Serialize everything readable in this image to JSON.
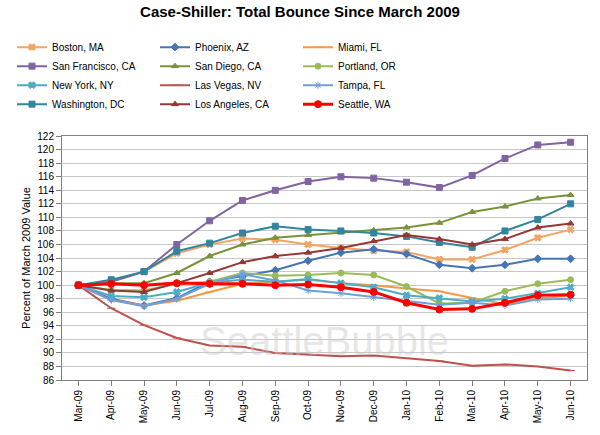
{
  "chart_data": {
    "type": "line",
    "title": "Case-Shiller: Total Bounce Since March 2009",
    "y_label": "Percent of March 2009 Value",
    "annotations": [
      "SeattleBubble"
    ],
    "categories": [
      "Mar-09",
      "Apr-09",
      "May-09",
      "Jun-09",
      "Jul-09",
      "Aug-09",
      "Sep-09",
      "Oct-09",
      "Nov-09",
      "Dec-09",
      "Jan-10",
      "Feb-10",
      "Mar-10",
      "Apr-10",
      "May-10",
      "Jun-10"
    ],
    "ylim": [
      86,
      122
    ],
    "yticks": [
      86,
      88,
      90,
      92,
      94,
      96,
      98,
      100,
      102,
      104,
      106,
      108,
      110,
      112,
      114,
      116,
      118,
      120,
      122
    ],
    "grid": true,
    "legend": "top",
    "series": [
      {
        "name": "Boston, MA",
        "color": "#f4a460",
        "marker": "x",
        "values": [
          100,
          100.5,
          102,
          104.7,
          106,
          106.9,
          106.7,
          106,
          105.5,
          105.1,
          104.9,
          103.8,
          103.8,
          105.2,
          107,
          108.2
        ]
      },
      {
        "name": "Phoenix, AZ",
        "color": "#4575b4",
        "marker": "diamond",
        "values": [
          100,
          98,
          97,
          98.1,
          100.5,
          101.3,
          102.2,
          103.6,
          104.8,
          105.3,
          104.6,
          103,
          102.5,
          103,
          103.9,
          103.9
        ]
      },
      {
        "name": "Miami, FL",
        "color": "#f79646",
        "marker": "line-ew",
        "values": [
          100,
          97.8,
          97,
          97.7,
          99,
          100.2,
          100.5,
          100.8,
          100.3,
          100,
          99.5,
          99.1,
          98.1,
          97.2,
          98,
          98.5
        ]
      },
      {
        "name": "San Francisco, CA",
        "color": "#8064a2",
        "marker": "square",
        "values": [
          100,
          100.5,
          102,
          106,
          109.5,
          112.5,
          114,
          115.3,
          116,
          115.8,
          115.2,
          114.4,
          116.2,
          118.7,
          120.7,
          121.1
        ]
      },
      {
        "name": "San Diego, CA",
        "color": "#77933c",
        "marker": "triangle-up",
        "values": [
          100,
          100.3,
          100.3,
          101.8,
          104.3,
          106,
          107,
          107.4,
          107.8,
          108.1,
          108.5,
          109.2,
          110.8,
          111.6,
          112.8,
          113.3
        ]
      },
      {
        "name": "Portland, OR",
        "color": "#9bbb59",
        "marker": "circle",
        "values": [
          100,
          99.3,
          99.2,
          100.2,
          100.5,
          101.8,
          101.4,
          101.5,
          101.8,
          101.5,
          99.8,
          97.3,
          97.4,
          99.1,
          100.2,
          100.8
        ]
      },
      {
        "name": "New York, NY",
        "color": "#4bacc6",
        "marker": "x",
        "values": [
          100,
          98.4,
          98.2,
          99,
          100.4,
          100.8,
          100.5,
          100.9,
          100.3,
          99.7,
          98.5,
          98.1,
          97.6,
          98,
          98.8,
          99.7
        ]
      },
      {
        "name": "Las Vegas, NV",
        "color": "#c0504d",
        "marker": "line-ew",
        "values": [
          100,
          96.6,
          94.1,
          92.2,
          91.1,
          90.9,
          90,
          89.8,
          89.5,
          89.6,
          89.2,
          88.8,
          88.1,
          88.3,
          88,
          87.4
        ]
      },
      {
        "name": "Tampa, FL",
        "color": "#6f9fd8",
        "marker": "asterisk",
        "values": [
          100,
          97.8,
          96.9,
          98,
          100.2,
          101.6,
          100.7,
          99.2,
          98.8,
          98.2,
          97.6,
          97.1,
          97.4,
          97,
          97.9,
          98
        ]
      },
      {
        "name": "Washington, DC",
        "color": "#31859c",
        "marker": "square",
        "values": [
          100,
          100.8,
          102,
          105,
          106.2,
          107.7,
          108.7,
          108.2,
          108,
          107.7,
          107.2,
          106.3,
          105.6,
          108,
          109.7,
          112
        ]
      },
      {
        "name": "Los Angeles, CA",
        "color": "#953735",
        "marker": "triangle-up",
        "values": [
          100,
          99.2,
          99,
          100.3,
          101.8,
          103.4,
          104.3,
          104.8,
          105.5,
          106.5,
          107.4,
          106.8,
          106,
          106.8,
          108.5,
          109.1
        ]
      },
      {
        "name": "Seattle, WA",
        "color": "#ff0000",
        "marker": "circle",
        "values": [
          100,
          100.2,
          100,
          100.3,
          100.2,
          100.2,
          100,
          100.1,
          99.7,
          99,
          97.4,
          96.4,
          96.5,
          97.4,
          98.5,
          98.6
        ]
      }
    ]
  }
}
